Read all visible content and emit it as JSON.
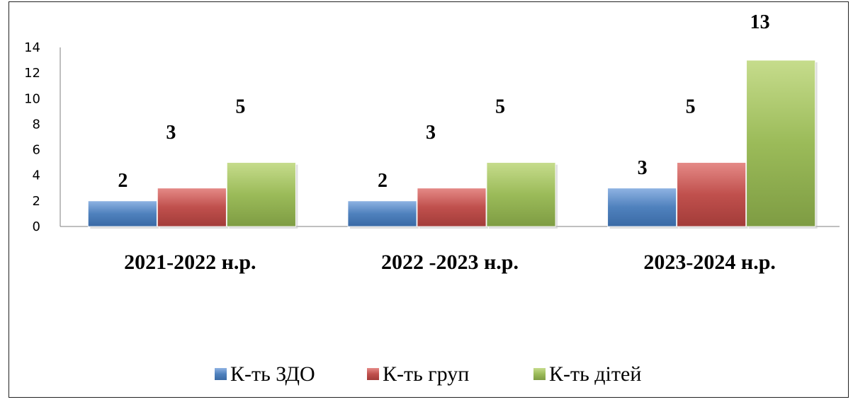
{
  "chart_data": {
    "type": "bar",
    "categories": [
      "2021-2022 н.р.",
      "2022 -2023 н.р.",
      "2023-2024 н.р."
    ],
    "series": [
      {
        "name": "К-ть ЗДО",
        "values": [
          2,
          2,
          3
        ],
        "color": "#4f81bd"
      },
      {
        "name": "К-ть груп",
        "values": [
          3,
          3,
          5
        ],
        "color": "#c0504d"
      },
      {
        "name": "К-ть дітей",
        "values": [
          5,
          5,
          13
        ],
        "color": "#9bbb59"
      }
    ],
    "ylim": [
      0,
      14
    ],
    "yticks": [
      "0",
      "2",
      "4",
      "6",
      "8",
      "10",
      "12",
      "14"
    ],
    "legend_position": "bottom",
    "grid": false,
    "data_labels": true
  }
}
